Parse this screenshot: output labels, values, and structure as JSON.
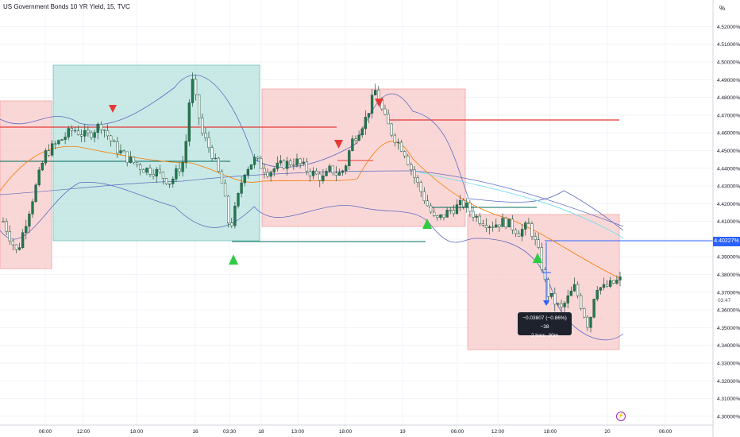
{
  "header": {
    "title": "US Government Bonds 10 YR Yield, 15, TVC",
    "axis_unit": "%"
  },
  "last_price": {
    "value_label": "4.40227%",
    "countdown": "03:47"
  },
  "measure_tooltip": {
    "line1": "−0.03807 (−0.86%) −38",
    "line2": "2 bars, 30m"
  },
  "colors": {
    "red_zone": "#f8c6c6",
    "green_zone": "#b2e0dc",
    "candle": "#1f7a4f",
    "resistance": "#e53935",
    "support": "#00695c",
    "current_line": "#2962ff",
    "bb": "#5c6bc0",
    "ema_fast": "#f57c00",
    "ema_slow": "#80deea",
    "sell_arrow": "#e53935",
    "buy_arrow": "#2ecc40"
  },
  "icons": {
    "events": "lightning-icon"
  },
  "chart_data": {
    "type": "candlestick",
    "title": "US Government Bonds 10 YR Yield, 15, TVC",
    "ylim": [
      4.295,
      4.535
    ],
    "y_ticks": [
      "4.30000%",
      "4.31000%",
      "4.32000%",
      "4.33000%",
      "4.34000%",
      "4.35000%",
      "4.36000%",
      "4.37000%",
      "4.38000%",
      "4.39000%",
      "4.40000%",
      "4.41000%",
      "4.42000%",
      "4.43000%",
      "4.44000%",
      "4.45000%",
      "4.46000%",
      "4.47000%",
      "4.48000%",
      "4.49000%",
      "4.50000%",
      "4.51000%",
      "4.52000%"
    ],
    "x_ticks": [
      "06:00",
      "12:00",
      "18:00",
      "16",
      "03:30",
      "18",
      "13:00",
      "18:00",
      "19",
      "06:00",
      "12:00",
      "18:00",
      "20",
      "06:00"
    ],
    "close_path": [
      [
        0,
        4.41
      ],
      [
        0.02,
        4.392
      ],
      [
        0.04,
        4.42
      ],
      [
        0.06,
        4.448
      ],
      [
        0.08,
        4.455
      ],
      [
        0.1,
        4.462
      ],
      [
        0.12,
        4.458
      ],
      [
        0.14,
        4.465
      ],
      [
        0.16,
        4.452
      ],
      [
        0.18,
        4.445
      ],
      [
        0.2,
        4.44
      ],
      [
        0.22,
        4.438
      ],
      [
        0.24,
        4.432
      ],
      [
        0.26,
        4.445
      ],
      [
        0.27,
        4.492
      ],
      [
        0.285,
        4.46
      ],
      [
        0.3,
        4.448
      ],
      [
        0.315,
        4.43
      ],
      [
        0.325,
        4.405
      ],
      [
        0.335,
        4.42
      ],
      [
        0.345,
        4.438
      ],
      [
        0.36,
        4.445
      ],
      [
        0.38,
        4.438
      ],
      [
        0.4,
        4.442
      ],
      [
        0.42,
        4.444
      ],
      [
        0.44,
        4.438
      ],
      [
        0.46,
        4.434
      ],
      [
        0.47,
        4.44
      ],
      [
        0.48,
        4.436
      ],
      [
        0.49,
        4.44
      ],
      [
        0.5,
        4.455
      ],
      [
        0.52,
        4.468
      ],
      [
        0.535,
        4.485
      ],
      [
        0.545,
        4.47
      ],
      [
        0.56,
        4.458
      ],
      [
        0.575,
        4.45
      ],
      [
        0.59,
        4.435
      ],
      [
        0.61,
        4.418
      ],
      [
        0.62,
        4.41
      ],
      [
        0.64,
        4.416
      ],
      [
        0.66,
        4.42
      ],
      [
        0.68,
        4.412
      ],
      [
        0.7,
        4.408
      ],
      [
        0.72,
        4.41
      ],
      [
        0.74,
        4.404
      ],
      [
        0.755,
        4.408
      ],
      [
        0.77,
        4.39
      ],
      [
        0.78,
        4.37
      ],
      [
        0.8,
        4.36
      ],
      [
        0.82,
        4.373
      ],
      [
        0.84,
        4.35
      ],
      [
        0.85,
        4.374
      ],
      [
        0.86,
        4.372
      ],
      [
        0.875,
        4.375
      ],
      [
        0.885,
        4.377
      ]
    ],
    "current_price": 4.40227,
    "annotations": {
      "sell_signals": 3,
      "buy_signals": 3
    }
  }
}
